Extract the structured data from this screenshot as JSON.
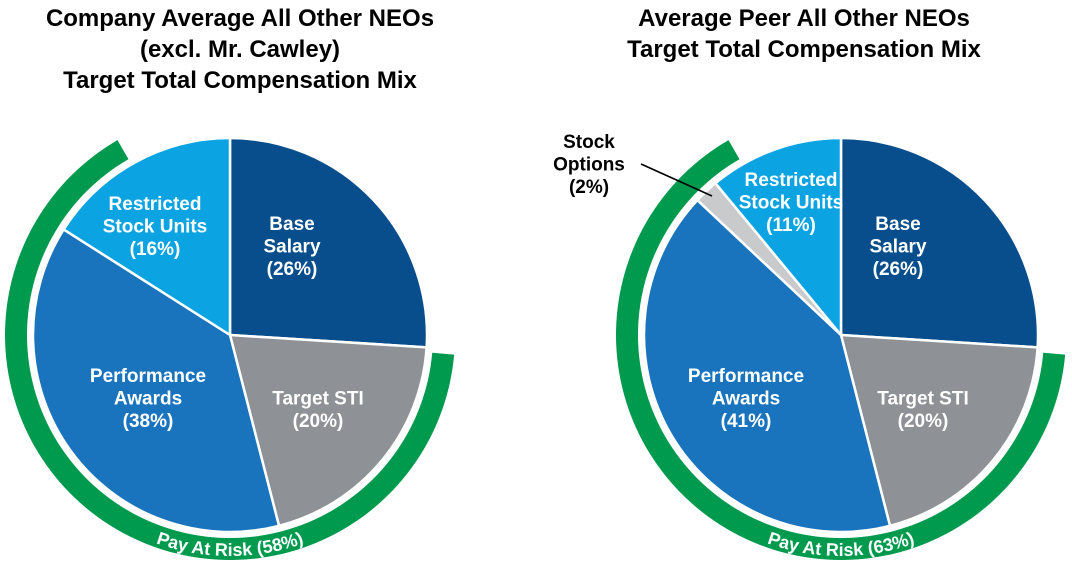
{
  "chart_data": [
    {
      "type": "pie",
      "title": [
        "Company Average All Other NEOs",
        "(excl. Mr. Cawley)",
        "Target Total Compensation Mix"
      ],
      "slices": [
        {
          "name": "Base Salary",
          "label_lines": [
            "Base",
            "Salary",
            "(26%)"
          ],
          "value": 26,
          "color": "#084e8c",
          "text_color": "#ffffff"
        },
        {
          "name": "Target STI",
          "label_lines": [
            "Target STI",
            "(20%)"
          ],
          "value": 20,
          "color": "#8e9296",
          "text_color": "#ffffff"
        },
        {
          "name": "Performance Awards",
          "label_lines": [
            "Performance",
            "Awards",
            "(38%)"
          ],
          "value": 38,
          "color": "#1a74bd",
          "text_color": "#ffffff"
        },
        {
          "name": "Restricted Stock Units",
          "label_lines": [
            "Restricted",
            "Stock Units",
            "(16%)"
          ],
          "value": 16,
          "color": "#0ca3e2",
          "text_color": "#ffffff"
        }
      ],
      "pay_at_risk": {
        "label": "Pay At Risk (58%)",
        "value": 58,
        "color": "#009a4e"
      }
    },
    {
      "type": "pie",
      "title": [
        "Average Peer All Other NEOs",
        "Target Total Compensation Mix"
      ],
      "slices": [
        {
          "name": "Base Salary",
          "label_lines": [
            "Base",
            "Salary",
            "(26%)"
          ],
          "value": 26,
          "color": "#084e8c",
          "text_color": "#ffffff"
        },
        {
          "name": "Target STI",
          "label_lines": [
            "Target STI",
            "(20%)"
          ],
          "value": 20,
          "color": "#8e9296",
          "text_color": "#ffffff"
        },
        {
          "name": "Performance Awards",
          "label_lines": [
            "Performance",
            "Awards",
            "(41%)"
          ],
          "value": 41,
          "color": "#1a74bd",
          "text_color": "#ffffff"
        },
        {
          "name": "Stock Options",
          "label_lines": [
            "Stock",
            "Options",
            "(2%)"
          ],
          "value": 2,
          "color": "#c8cacc",
          "text_color": "#000000",
          "external_label": true
        },
        {
          "name": "Restricted Stock Units",
          "label_lines": [
            "Restricted",
            "Stock Units",
            "(11%)"
          ],
          "value": 11,
          "color": "#0ca3e2",
          "text_color": "#ffffff"
        }
      ],
      "pay_at_risk": {
        "label": "Pay At Risk (63%)",
        "value": 63,
        "color": "#009a4e"
      }
    }
  ]
}
